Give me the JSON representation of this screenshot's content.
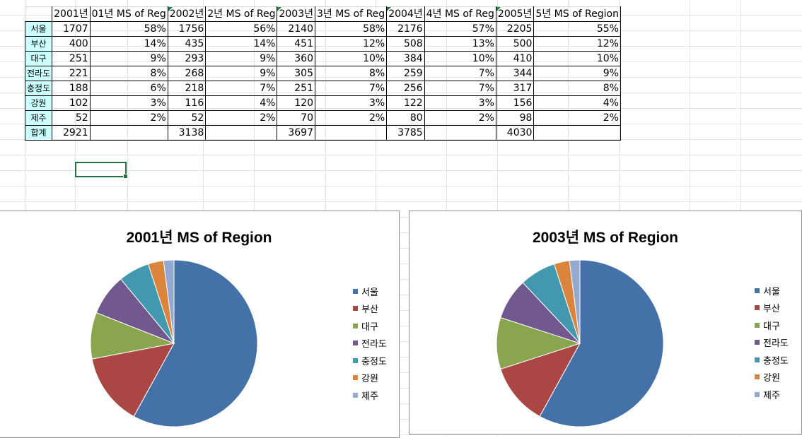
{
  "sheet": {
    "headers": [
      "",
      "2001년",
      "01년 MS of Reg",
      "2002년",
      "2년 MS of Reg",
      "2003년",
      "3년 MS of Reg",
      "2004년",
      "4년 MS of Reg",
      "2005년",
      "5년 MS of Region"
    ],
    "rows": [
      [
        "서울",
        "1707",
        "58%",
        "1756",
        "56%",
        "2140",
        "58%",
        "2176",
        "57%",
        "2205",
        "55%"
      ],
      [
        "부산",
        "400",
        "14%",
        "435",
        "14%",
        "451",
        "12%",
        "508",
        "13%",
        "500",
        "12%"
      ],
      [
        "대구",
        "251",
        "9%",
        "293",
        "9%",
        "360",
        "10%",
        "384",
        "10%",
        "410",
        "10%"
      ],
      [
        "전라도",
        "221",
        "8%",
        "268",
        "9%",
        "305",
        "8%",
        "259",
        "7%",
        "344",
        "9%"
      ],
      [
        "충정도",
        "188",
        "6%",
        "218",
        "7%",
        "251",
        "7%",
        "256",
        "7%",
        "317",
        "8%"
      ],
      [
        "강원",
        "102",
        "3%",
        "116",
        "4%",
        "120",
        "3%",
        "122",
        "3%",
        "156",
        "4%"
      ],
      [
        "제주",
        "52",
        "2%",
        "52",
        "2%",
        "70",
        "2%",
        "80",
        "2%",
        "98",
        "2%"
      ],
      [
        "합계",
        "2921",
        "",
        "3138",
        "",
        "3697",
        "",
        "3785",
        "",
        "4030",
        ""
      ]
    ]
  },
  "colors": {
    "row_header_fill": "#ccffff",
    "selection": "#217346",
    "comment_marker": "#1a7f3c"
  },
  "chart_data": [
    {
      "type": "pie",
      "title": "2001년 MS of Region",
      "categories": [
        "서울",
        "부산",
        "대구",
        "전라도",
        "충정도",
        "강원",
        "제주"
      ],
      "values": [
        58,
        14,
        9,
        8,
        6,
        3,
        2
      ],
      "colors": [
        "#4472a8",
        "#aa4643",
        "#89a54e",
        "#71588f",
        "#4198af",
        "#db843d",
        "#93a9cf"
      ],
      "legend_position": "right"
    },
    {
      "type": "pie",
      "title": "2003년 MS of Region",
      "categories": [
        "서울",
        "부산",
        "대구",
        "전라도",
        "충정도",
        "강원",
        "제주"
      ],
      "values": [
        58,
        12,
        10,
        8,
        7,
        3,
        2
      ],
      "colors": [
        "#4472a8",
        "#aa4643",
        "#89a54e",
        "#71588f",
        "#4198af",
        "#db843d",
        "#93a9cf"
      ],
      "legend_position": "right"
    }
  ]
}
